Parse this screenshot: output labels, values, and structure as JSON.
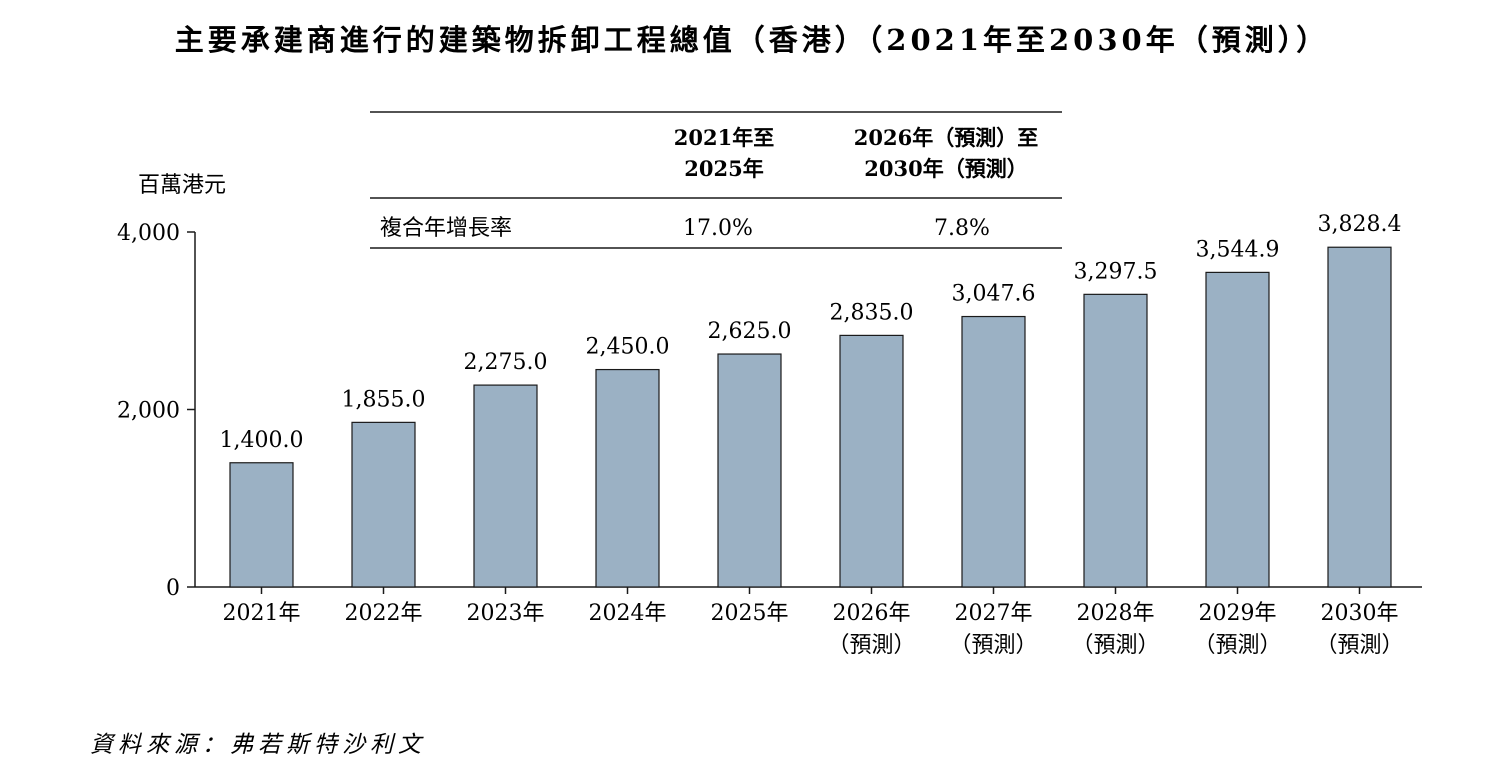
{
  "title": "主要承建商進行的建築物拆卸工程總值（香港）（2021年至2030年（預測））",
  "source": "資料來源：弗若斯特沙利文",
  "colors": {
    "bar": "#9bb1c4",
    "bar_stroke": "#1a1a1a",
    "text": "#1a1a1a"
  },
  "cagr_table": {
    "row_label": "複合年增長率",
    "columns": [
      {
        "header_line1": "2021年至",
        "header_line2": "2025年",
        "value": "17.0%"
      },
      {
        "header_line1": "2026年（預測）至",
        "header_line2": "2030年（預測）",
        "value": "7.8%"
      }
    ]
  },
  "chart_data": {
    "type": "bar",
    "title": "主要承建商進行的建築物拆卸工程總值（香港）（2021年至2030年（預測））",
    "ylabel": "百萬港元",
    "ylim": [
      0,
      4000
    ],
    "yticks": [
      0,
      2000,
      4000
    ],
    "ytick_labels": [
      "0",
      "2,000",
      "4,000"
    ],
    "categories": [
      "2021年",
      "2022年",
      "2023年",
      "2024年",
      "2025年",
      "2026年",
      "2027年",
      "2028年",
      "2029年",
      "2030年"
    ],
    "category_sublabels": [
      "",
      "",
      "",
      "",
      "",
      "（預測）",
      "（預測）",
      "（預測）",
      "（預測）",
      "（預測）"
    ],
    "values": [
      1400.0,
      1855.0,
      2275.0,
      2450.0,
      2625.0,
      2835.0,
      3047.6,
      3297.5,
      3544.9,
      3828.4
    ],
    "value_labels": [
      "1,400.0",
      "1,855.0",
      "2,275.0",
      "2,450.0",
      "2,625.0",
      "2,835.0",
      "3,047.6",
      "3,297.5",
      "3,544.9",
      "3,828.4"
    ],
    "grid": false,
    "legend": "none"
  }
}
